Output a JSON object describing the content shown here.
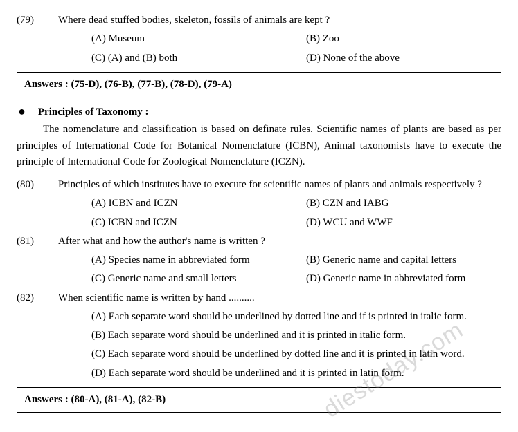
{
  "q79": {
    "num": "(79)",
    "text": "Where dead stuffed bodies, skeleton, fossils of animals are kept ?",
    "a": "(A) Museum",
    "b": "(B) Zoo",
    "c": "(C) (A) and (B) both",
    "d": "(D) None of the above"
  },
  "answers1": "Answers : (75-D), (76-B), (77-B), (78-D), (79-A)",
  "section": {
    "title": "Principles of Taxonomy :",
    "para": "The nomenclature and classification is based on definate rules. Scientific names of plants are based as per principles of International Code for Botanical Nomenclature (ICBN), Animal taxonomists have to execute the principle of International Code for Zoological Nomenclature (ICZN)."
  },
  "q80": {
    "num": "(80)",
    "text": "Principles of which institutes have to execute for scientific names of plants and animals respectively ?",
    "a": "(A) ICBN and  ICZN",
    "b": "(B) CZN and IABG",
    "c": "(C) ICBN and  ICZN",
    "d": "(D) WCU and  WWF"
  },
  "q81": {
    "num": "(81)",
    "text": "After what and how the author's name is written ?",
    "a": "(A) Species name in abbreviated form",
    "b": "(B) Generic name and capital letters",
    "c": "(C) Generic name and small letters",
    "d": "(D) Generic name in abbreviated form"
  },
  "q82": {
    "num": "(82)",
    "text": "When scientific name is written by hand ..........",
    "a": "(A) Each separate word should be underlined by dotted line and if is printed in italic form.",
    "b": "(B) Each separate word should be underlined and it is printed in italic form.",
    "c": "(C) Each separate word should be underlined by dotted line and it is printed in latin word.",
    "d": "(D) Each separate word should be underlined and it is printed in latin form."
  },
  "answers2": "Answers : (80-A), (81-A), (82-B)",
  "watermark": "diestoday.com"
}
